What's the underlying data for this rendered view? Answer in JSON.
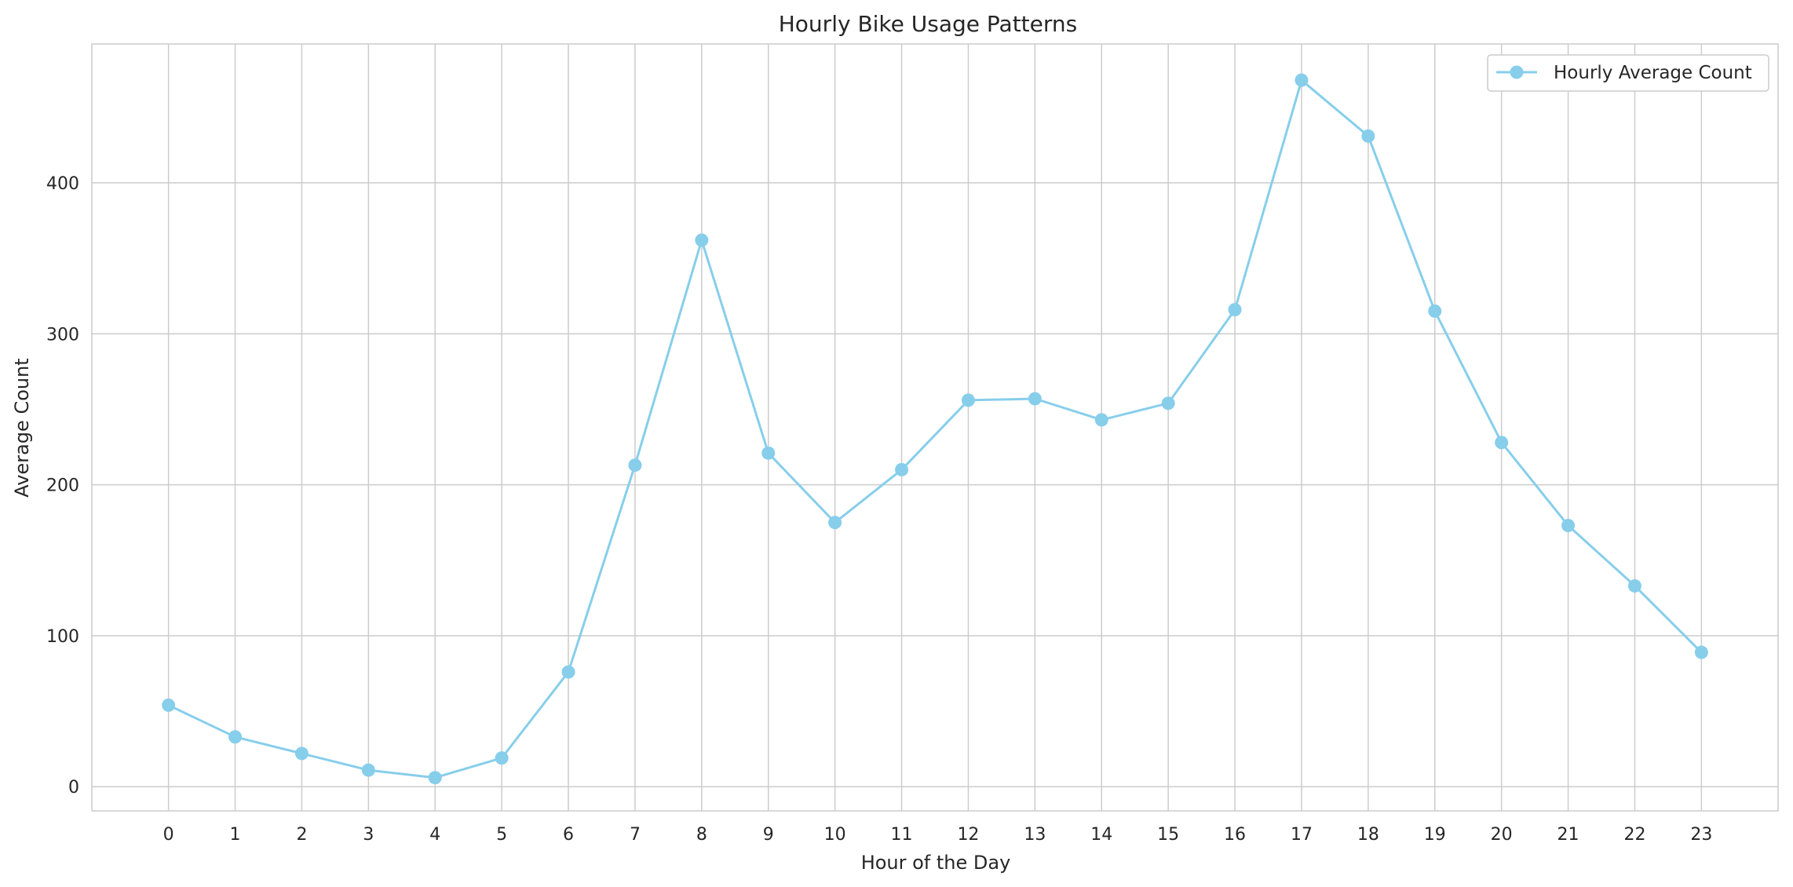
{
  "chart_data": {
    "type": "line",
    "title": "Hourly Bike Usage Patterns",
    "xlabel": "Hour of the Day",
    "ylabel": "Average Count",
    "x": [
      0,
      1,
      2,
      3,
      4,
      5,
      6,
      7,
      8,
      9,
      10,
      11,
      12,
      13,
      14,
      15,
      16,
      17,
      18,
      19,
      20,
      21,
      22,
      23
    ],
    "xticks": [
      "0",
      "1",
      "2",
      "3",
      "4",
      "5",
      "6",
      "7",
      "8",
      "9",
      "10",
      "11",
      "12",
      "13",
      "14",
      "15",
      "16",
      "17",
      "18",
      "19",
      "20",
      "21",
      "22",
      "23"
    ],
    "yticks": [
      0,
      100,
      200,
      300,
      400
    ],
    "ylim": [
      -16,
      492
    ],
    "xlim": [
      -1.15,
      24.15
    ],
    "grid": true,
    "legend_position": "top-right",
    "series": [
      {
        "name": "Hourly Average Count",
        "color": "#87ceeb",
        "marker": "circle",
        "values": [
          54,
          33,
          22,
          11,
          6,
          19,
          76,
          213,
          362,
          221,
          175,
          210,
          256,
          257,
          243,
          254,
          316,
          468,
          431,
          315,
          228,
          173,
          133,
          89
        ]
      }
    ]
  }
}
